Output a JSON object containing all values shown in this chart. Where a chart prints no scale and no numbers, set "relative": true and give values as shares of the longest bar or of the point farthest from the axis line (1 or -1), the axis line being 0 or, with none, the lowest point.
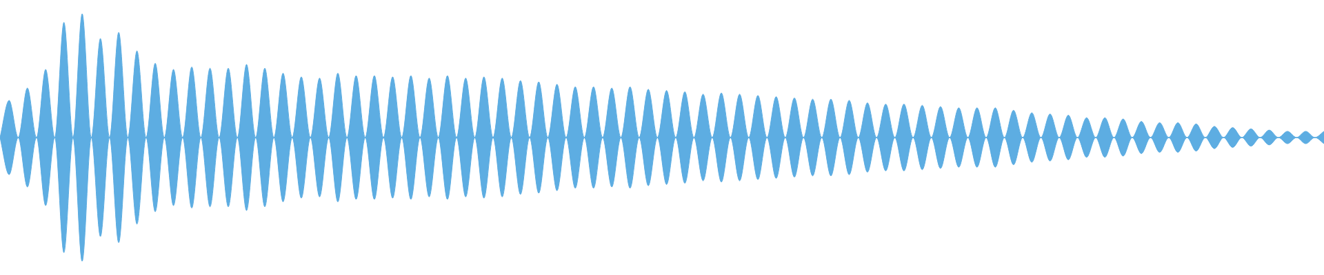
{
  "chart_data": {
    "type": "area",
    "relative": true,
    "grid": false,
    "legend": false,
    "categories": [
      null,
      null,
      null,
      null,
      null,
      null,
      null,
      null,
      null,
      null,
      null,
      null,
      null,
      null,
      null,
      null,
      null,
      null,
      null,
      null,
      null,
      null,
      null,
      null,
      null,
      null,
      null,
      null,
      null,
      null,
      null,
      null,
      null,
      null,
      null,
      null,
      null,
      null,
      null,
      null,
      null,
      null,
      null,
      null,
      null,
      null,
      null,
      null,
      null,
      null,
      null,
      null,
      null,
      null,
      null,
      null,
      null,
      null,
      null,
      null,
      null,
      null,
      null,
      null,
      null,
      null,
      null,
      null,
      null,
      null,
      null,
      null,
      null,
      null,
      null,
      null,
      null,
      null,
      null,
      null,
      null,
      null,
      null,
      null,
      null,
      null,
      null,
      null,
      null,
      null,
      null,
      null,
      null,
      null,
      null,
      null,
      null,
      null,
      null,
      null,
      null,
      null,
      null,
      null,
      null,
      null,
      null,
      null,
      null,
      null,
      null,
      null,
      null,
      null,
      null,
      null,
      null,
      null,
      null,
      null,
      null,
      null,
      null,
      null,
      null,
      null,
      null,
      null,
      null,
      null,
      null,
      null,
      null,
      null,
      null,
      null,
      null,
      null,
      null,
      null,
      null,
      null,
      null,
      null,
      null,
      null
    ],
    "series": [
      {
        "color": "#5dade2",
        "values": [
          0,
          0.3,
          0,
          0.4,
          0,
          0.55,
          0,
          0.93,
          0,
          1,
          0,
          0.8,
          0,
          0.85,
          0,
          0.7,
          0,
          0.6,
          0,
          0.55,
          0,
          0.57,
          0,
          0.56,
          0,
          0.56,
          0,
          0.59,
          0,
          0.56,
          0,
          0.52,
          0,
          0.49,
          0,
          0.48,
          0,
          0.52,
          0,
          0.5,
          0,
          0.5,
          0,
          0.49,
          0,
          0.5,
          0,
          0.48,
          0,
          0.5,
          0,
          0.48,
          0,
          0.49,
          0,
          0.48,
          0,
          0.46,
          0,
          0.45,
          0,
          0.43,
          0,
          0.41,
          0,
          0.41,
          0,
          0.4,
          0,
          0.41,
          0,
          0.39,
          0,
          0.38,
          0,
          0.37,
          0,
          0.35,
          0,
          0.36,
          0,
          0.35,
          0,
          0.34,
          0,
          0.33,
          0,
          0.32,
          0,
          0.31,
          0,
          0.31,
          0,
          0.3,
          0,
          0.28,
          0,
          0.27,
          0,
          0.27,
          0,
          0.26,
          0,
          0.25,
          0,
          0.24,
          0,
          0.24,
          0,
          0.24,
          0,
          0.22,
          0,
          0.2,
          0,
          0.19,
          0,
          0.18,
          0,
          0.16,
          0,
          0.16,
          0,
          0.15,
          0,
          0.13,
          0,
          0.12,
          0,
          0.12,
          0,
          0.11,
          0,
          0.09,
          0,
          0.08,
          0,
          0.07,
          0,
          0.06,
          0,
          0.05,
          0,
          0.05,
          0,
          0.05
        ]
      },
      {
        "color": "#5dade2",
        "values": [
          0,
          -0.3,
          0,
          -0.4,
          0,
          -0.55,
          0,
          -0.93,
          0,
          -1,
          0,
          -0.8,
          0,
          -0.85,
          0,
          -0.7,
          0,
          -0.6,
          0,
          -0.55,
          0,
          -0.57,
          0,
          -0.56,
          0,
          -0.56,
          0,
          -0.59,
          0,
          -0.56,
          0,
          -0.52,
          0,
          -0.49,
          0,
          -0.48,
          0,
          -0.52,
          0,
          -0.5,
          0,
          -0.5,
          0,
          -0.49,
          0,
          -0.5,
          0,
          -0.48,
          0,
          -0.5,
          0,
          -0.48,
          0,
          -0.49,
          0,
          -0.48,
          0,
          -0.46,
          0,
          -0.45,
          0,
          -0.43,
          0,
          -0.41,
          0,
          -0.41,
          0,
          -0.4,
          0,
          -0.41,
          0,
          -0.39,
          0,
          -0.38,
          0,
          -0.37,
          0,
          -0.35,
          0,
          -0.36,
          0,
          -0.35,
          0,
          -0.34,
          0,
          -0.33,
          0,
          -0.32,
          0,
          -0.31,
          0,
          -0.31,
          0,
          -0.3,
          0,
          -0.28,
          0,
          -0.27,
          0,
          -0.27,
          0,
          -0.26,
          0,
          -0.25,
          0,
          -0.24,
          0,
          -0.24,
          0,
          -0.24,
          0,
          -0.22,
          0,
          -0.2,
          0,
          -0.19,
          0,
          -0.18,
          0,
          -0.16,
          0,
          -0.16,
          0,
          -0.15,
          0,
          -0.13,
          0,
          -0.12,
          0,
          -0.12,
          0,
          -0.11,
          0,
          -0.09,
          0,
          -0.08,
          0,
          -0.07,
          0,
          -0.06,
          0,
          -0.05,
          0,
          -0.05,
          0,
          -0.05
        ]
      }
    ]
  }
}
